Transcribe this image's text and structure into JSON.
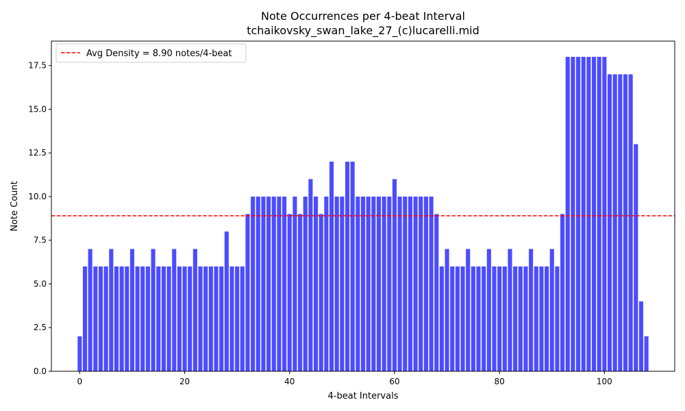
{
  "chart_data": {
    "type": "bar",
    "title": "Note Occurrences per 4-beat Interval",
    "subtitle": "tchaikovsky_swan_lake_27_(c)lucarelli.mid",
    "xlabel": "4-beat Intervals",
    "ylabel": "Note Count",
    "xlim": [
      -5.4,
      113.4
    ],
    "ylim": [
      0,
      18.9
    ],
    "xticks": [
      0,
      20,
      40,
      60,
      80,
      100
    ],
    "yticks": [
      0.0,
      2.5,
      5.0,
      7.5,
      10.0,
      12.5,
      15.0,
      17.5
    ],
    "ytick_labels": [
      "0.0",
      "2.5",
      "5.0",
      "7.5",
      "10.0",
      "12.5",
      "15.0",
      "17.5"
    ],
    "bar_color": "#0000ff",
    "bar_alpha": 0.7,
    "avg_line": {
      "value": 8.9,
      "color": "#ff0000",
      "style": "dashed",
      "label": "Avg Density = 8.90 notes/4-beat"
    },
    "legend_position": "upper-left",
    "grid": false,
    "values": [
      2,
      6,
      7,
      6,
      6,
      6,
      7,
      6,
      6,
      6,
      7,
      6,
      6,
      6,
      7,
      6,
      6,
      6,
      7,
      6,
      6,
      6,
      7,
      6,
      6,
      6,
      6,
      6,
      8,
      6,
      6,
      6,
      9,
      10,
      10,
      10,
      10,
      10,
      10,
      10,
      9,
      10,
      9,
      10,
      11,
      10,
      9,
      10,
      12,
      10,
      10,
      12,
      12,
      10,
      10,
      10,
      10,
      10,
      10,
      10,
      11,
      10,
      10,
      10,
      10,
      10,
      10,
      10,
      9,
      6,
      7,
      6,
      6,
      6,
      7,
      6,
      6,
      6,
      7,
      6,
      6,
      6,
      7,
      6,
      6,
      6,
      7,
      6,
      6,
      6,
      7,
      6,
      9,
      18,
      18,
      18,
      18,
      18,
      18,
      18,
      18,
      17,
      17,
      17,
      17,
      17,
      13,
      4,
      2
    ]
  }
}
